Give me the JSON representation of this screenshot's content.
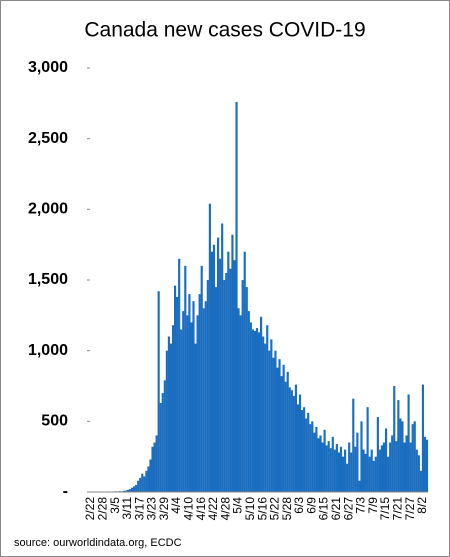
{
  "chart_data": {
    "type": "bar",
    "title": "Canada new cases COVID-19",
    "source": "source: ourworldindata.org, ECDC",
    "color": "#1a6dbf",
    "categories": [
      "2/22",
      null,
      null,
      null,
      null,
      null,
      "2/28",
      null,
      null,
      null,
      null,
      null,
      "3/5",
      null,
      null,
      null,
      null,
      null,
      "3/11",
      null,
      null,
      null,
      null,
      null,
      "3/17",
      null,
      null,
      null,
      null,
      null,
      "3/23",
      null,
      null,
      null,
      null,
      null,
      "3/29",
      null,
      null,
      null,
      null,
      null,
      "4/4",
      null,
      null,
      null,
      null,
      null,
      "4/10",
      null,
      null,
      null,
      null,
      null,
      "4/16",
      null,
      null,
      null,
      null,
      null,
      "4/22",
      null,
      null,
      null,
      null,
      null,
      "4/28",
      null,
      null,
      null,
      null,
      null,
      "5/4",
      null,
      null,
      null,
      null,
      null,
      "5/10",
      null,
      null,
      null,
      null,
      null,
      "5/16",
      null,
      null,
      null,
      null,
      null,
      "5/22",
      null,
      null,
      null,
      null,
      null,
      "5/28",
      null,
      null,
      null,
      null,
      null,
      "6/3",
      null,
      null,
      null,
      null,
      null,
      "6/9",
      null,
      null,
      null,
      null,
      null,
      "6/15",
      null,
      null,
      null,
      null,
      null,
      "6/21",
      null,
      null,
      null,
      null,
      null,
      "6/27",
      null,
      null,
      null,
      null,
      null,
      "7/3",
      null,
      null,
      null,
      null,
      null,
      "7/9",
      null,
      null,
      null,
      null,
      null,
      "7/15",
      null,
      null,
      null,
      null,
      null,
      "7/21",
      null,
      null,
      null,
      null,
      null,
      "7/27",
      null,
      null,
      null,
      null,
      null,
      "8/2",
      null,
      null
    ],
    "values": [
      0,
      0,
      0,
      0,
      0,
      0,
      1,
      0,
      4,
      2,
      0,
      3,
      5,
      3,
      6,
      4,
      8,
      10,
      15,
      20,
      30,
      40,
      50,
      80,
      100,
      130,
      110,
      150,
      180,
      230,
      320,
      350,
      400,
      1420,
      630,
      700,
      790,
      1000,
      1100,
      1050,
      1180,
      1460,
      1380,
      1650,
      1150,
      1280,
      1600,
      1250,
      1400,
      1200,
      1350,
      1050,
      1250,
      1400,
      1600,
      1300,
      1350,
      1500,
      2040,
      1700,
      1750,
      1450,
      1800,
      1650,
      1900,
      1500,
      1550,
      1700,
      1580,
      1820,
      1640,
      2760,
      1300,
      1250,
      1500,
      1700,
      1450,
      1280,
      1200,
      1150,
      1140,
      1160,
      1130,
      1240,
      1100,
      1050,
      1180,
      1000,
      1080,
      950,
      1000,
      880,
      940,
      820,
      900,
      780,
      850,
      740,
      720,
      680,
      760,
      620,
      690,
      580,
      600,
      520,
      560,
      480,
      500,
      420,
      460,
      380,
      400,
      350,
      440,
      330,
      360,
      310,
      390,
      300,
      340,
      280,
      320,
      250,
      300,
      200,
      350,
      280,
      660,
      320,
      420,
      80,
      500,
      300,
      270,
      600,
      250,
      300,
      220,
      250,
      530,
      300,
      330,
      350,
      450,
      250,
      350,
      400,
      750,
      360,
      650,
      520,
      500,
      350,
      400,
      690,
      350,
      480,
      500,
      300,
      260,
      150,
      760,
      390,
      370
    ],
    "ylim": [
      0,
      3000
    ],
    "yticks": [
      {
        "value": 0,
        "label": "-"
      },
      500,
      {
        "value": 1000,
        "label": "1,000"
      },
      {
        "value": 1500,
        "label": "1,500"
      },
      {
        "value": 2000,
        "label": "2,000"
      },
      {
        "value": 2500,
        "label": "2,500"
      },
      {
        "value": 3000,
        "label": "3,000"
      }
    ]
  }
}
